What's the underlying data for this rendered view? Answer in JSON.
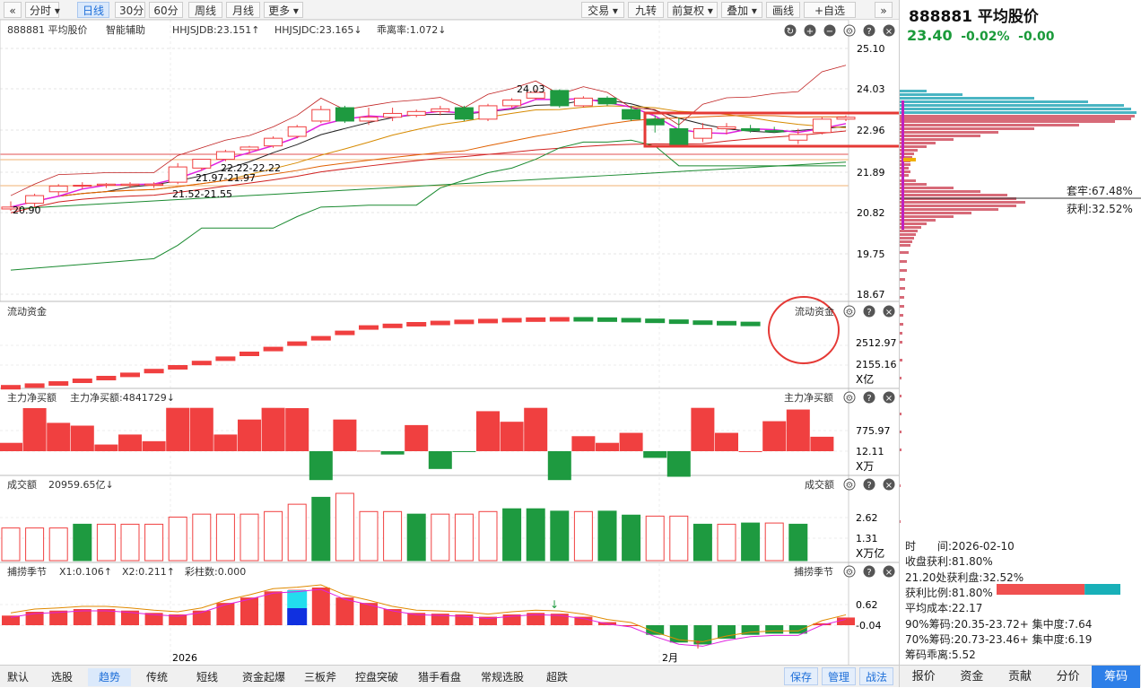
{
  "toolbar": {
    "left": [
      "分时",
      "日线",
      "30分",
      "60分",
      "周线",
      "月线",
      "更多"
    ],
    "active": "日线",
    "right": [
      "交易",
      "九转",
      "前复权",
      "叠加",
      "画线",
      "+自选"
    ]
  },
  "main": {
    "name": "888881 平均股价",
    "assist": "智能辅助",
    "ind1": "HHJSJDB:23.151↑",
    "ind2": "HHJSJDC:23.165↓",
    "ind3": "乖离率:1.072↓",
    "yticks": [
      "25.10",
      "24.03",
      "22.96",
      "21.89",
      "20.82",
      "19.75",
      "18.67"
    ],
    "labels": {
      "high": "24.03",
      "p1": "22.22-22.22",
      "p2": "21.97-21.97",
      "p3": "21.52-21.55",
      "low": "20.90"
    }
  },
  "flow": {
    "title": "流动资金",
    "title_r": "流动资金",
    "ticks": [
      "2512.97",
      "2155.16"
    ],
    "unit": "X亿"
  },
  "net": {
    "title": "主力净买额",
    "value": "主力净买额:4841729↓",
    "title_r": "主力净买额",
    "ticks": [
      "775.97",
      "12.11"
    ],
    "unit": "X万"
  },
  "vol": {
    "title": "成交额",
    "value": "20959.65亿↓",
    "title_r": "成交额",
    "ticks": [
      "2.62",
      "1.31"
    ],
    "unit": "X万亿"
  },
  "season": {
    "title": "捕捞季节",
    "x1": "X1:0.106↑",
    "x2": "X2:0.211↑",
    "bars": "彩柱数:0.000",
    "title_r": "捕捞季节",
    "ticks": [
      "0.62",
      "-0.04"
    ]
  },
  "xaxis": {
    "year": "2026",
    "month": "2月"
  },
  "chart_data": {
    "type": "candlestick",
    "candles": [
      [
        20.9,
        21.1,
        20.85,
        20.95
      ],
      [
        21.05,
        21.3,
        20.95,
        21.25
      ],
      [
        21.35,
        21.55,
        21.25,
        21.5
      ],
      [
        21.5,
        21.6,
        21.42,
        21.52
      ],
      [
        21.52,
        21.58,
        21.45,
        21.55
      ],
      [
        21.52,
        21.6,
        21.45,
        21.55
      ],
      [
        21.52,
        21.6,
        21.45,
        21.55
      ],
      [
        21.6,
        22.1,
        21.55,
        22.0
      ],
      [
        21.97,
        22.2,
        21.9,
        22.2
      ],
      [
        22.2,
        22.45,
        22.15,
        22.4
      ],
      [
        22.45,
        22.55,
        22.35,
        22.52
      ],
      [
        22.55,
        22.8,
        22.5,
        22.75
      ],
      [
        22.8,
        23.1,
        22.75,
        23.05
      ],
      [
        23.2,
        23.6,
        23.15,
        23.5
      ],
      [
        23.55,
        23.6,
        23.15,
        23.2
      ],
      [
        23.2,
        23.55,
        23.1,
        23.3
      ],
      [
        23.3,
        23.55,
        23.2,
        23.4
      ],
      [
        23.35,
        23.5,
        23.3,
        23.45
      ],
      [
        23.45,
        23.6,
        23.35,
        23.52
      ],
      [
        23.55,
        23.6,
        23.2,
        23.25
      ],
      [
        23.25,
        23.65,
        23.2,
        23.6
      ],
      [
        23.6,
        23.8,
        23.55,
        23.75
      ],
      [
        23.8,
        24.03,
        23.75,
        23.95
      ],
      [
        24.0,
        24.03,
        23.55,
        23.6
      ],
      [
        23.6,
        23.85,
        23.55,
        23.8
      ],
      [
        23.8,
        23.85,
        23.6,
        23.65
      ],
      [
        23.5,
        23.6,
        23.2,
        23.25
      ],
      [
        23.25,
        23.35,
        22.9,
        23.1
      ],
      [
        23.0,
        23.3,
        22.55,
        22.58
      ],
      [
        22.75,
        23.15,
        22.65,
        23.0
      ],
      [
        23.0,
        23.15,
        22.85,
        23.05
      ],
      [
        23.0,
        23.1,
        22.9,
        22.95
      ],
      [
        22.95,
        23.05,
        22.9,
        22.92
      ],
      [
        22.7,
        23.0,
        22.6,
        22.85
      ],
      [
        22.9,
        23.3,
        22.85,
        23.25
      ],
      [
        23.25,
        23.35,
        23.2,
        23.3
      ]
    ],
    "flow": [
      1905,
      1920,
      1940,
      1965,
      1990,
      2020,
      2055,
      2090,
      2130,
      2170,
      2215,
      2260,
      2310,
      2360,
      2410,
      2460,
      2475,
      2490,
      2502,
      2512,
      2520,
      2528,
      2533,
      2536,
      2536,
      2533,
      2528,
      2522,
      2514,
      2505,
      2500,
      2493
    ],
    "net": [
      150,
      775,
      510,
      460,
      120,
      300,
      180,
      780,
      780,
      300,
      570,
      780,
      775,
      -520,
      570,
      10,
      -60,
      470,
      -320,
      -10,
      720,
      530,
      780,
      -520,
      270,
      150,
      330,
      -120,
      -460,
      780,
      330,
      0,
      540,
      750,
      260
    ],
    "vol": [
      1.65,
      1.65,
      1.65,
      1.84,
      1.84,
      1.84,
      1.84,
      2.2,
      2.35,
      2.35,
      2.35,
      2.48,
      2.85,
      3.2,
      3.4,
      2.48,
      2.48,
      2.35,
      2.35,
      2.35,
      2.48,
      2.62,
      2.62,
      2.5,
      2.48,
      2.5,
      2.3,
      2.25,
      2.25,
      1.84,
      1.84,
      1.9,
      1.9,
      1.84
    ],
    "season": [
      0.25,
      0.35,
      0.38,
      0.42,
      0.42,
      0.38,
      0.32,
      0.28,
      0.38,
      0.58,
      0.72,
      0.88,
      0.92,
      0.98,
      0.72,
      0.58,
      0.42,
      0.32,
      0.3,
      0.28,
      0.22,
      0.28,
      0.32,
      0.3,
      0.22,
      0.08,
      0,
      -0.25,
      -0.45,
      -0.5,
      -0.35,
      -0.25,
      -0.22,
      -0.22,
      0.05,
      0.2
    ]
  },
  "right": {
    "name": "888881 平均股价",
    "price": "23.40",
    "change": "-0.02%",
    "change2": "-0.00",
    "trap": "套牢:67.48%",
    "profit": "获利:32.52%",
    "info": [
      "时　　间:2026-02-10",
      "收盘获利:81.80%",
      "21.20处获利盘:32.52%",
      "获利比例:81.80%",
      "平均成本:22.17",
      "90%筹码:20.35-23.72+ 集中度:7.64",
      "70%筹码:20.73-23.46+ 集中度:6.19",
      "筹码乖离:5.52"
    ],
    "tabs": [
      "报价",
      "资金",
      "贡献",
      "分价",
      "筹码"
    ],
    "active_tab": "筹码",
    "profit_ratio": 0.818
  },
  "bottom": {
    "tabs": [
      "默认",
      "选股",
      "趋势",
      "传统",
      "短线",
      "资金起爆",
      "三板斧",
      "控盘突破",
      "猎手看盘",
      "常规选股",
      "超跌"
    ],
    "active": "趋势",
    "buttons": [
      "保存",
      "管理",
      "战法"
    ]
  },
  "colors": {
    "up": "#f04040",
    "down": "#1e9a40",
    "ma1": "#222",
    "ma2": "#d68a00",
    "ma3": "#e06000",
    "ma4": "#d02020",
    "ma5": "#1a8a30",
    "pink": "#e020e0",
    "accent": "#1e6fd9"
  }
}
